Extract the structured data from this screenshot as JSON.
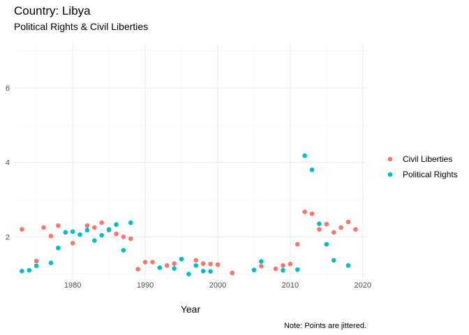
{
  "chart_data": {
    "type": "scatter",
    "title": "Country: Libya",
    "subtitle": "Political Rights & Civil Liberties",
    "xlabel": "Year",
    "ylabel": "",
    "caption": "Note: Points are jittered.",
    "xlim": [
      1971.9,
      2020.6
    ],
    "ylim": [
      0.9,
      7.2
    ],
    "x_ticks": [
      1980,
      1990,
      2000,
      2010,
      2020
    ],
    "y_ticks": [
      2,
      4,
      6
    ],
    "grid": true,
    "legend_position": "right",
    "series": [
      {
        "name": "Civil Liberties",
        "color": "#F8766D",
        "points": [
          [
            1973,
            2.2
          ],
          [
            1975,
            1.35
          ],
          [
            1976,
            2.25
          ],
          [
            1977,
            2.02
          ],
          [
            1978,
            2.3
          ],
          [
            1979,
            2.12
          ],
          [
            1980,
            1.83
          ],
          [
            1982,
            2.3
          ],
          [
            1983,
            2.25
          ],
          [
            1984,
            2.38
          ],
          [
            1985,
            2.18
          ],
          [
            1986,
            2.08
          ],
          [
            1987,
            2.0
          ],
          [
            1988,
            1.95
          ],
          [
            1989,
            1.13
          ],
          [
            1990,
            1.32
          ],
          [
            1991,
            1.32
          ],
          [
            1993,
            1.23
          ],
          [
            1994,
            1.28
          ],
          [
            1997,
            1.37
          ],
          [
            1998,
            1.28
          ],
          [
            1999,
            1.27
          ],
          [
            2000,
            1.25
          ],
          [
            2002,
            1.03
          ],
          [
            2006,
            1.21
          ],
          [
            2008,
            1.14
          ],
          [
            2009,
            1.23
          ],
          [
            2010,
            1.27
          ],
          [
            2011,
            1.8
          ],
          [
            2012,
            2.67
          ],
          [
            2013,
            2.62
          ],
          [
            2014,
            2.2
          ],
          [
            2015,
            2.34
          ],
          [
            2016,
            2.12
          ],
          [
            2017,
            2.25
          ],
          [
            2018,
            2.4
          ],
          [
            2019,
            2.2
          ]
        ]
      },
      {
        "name": "Political Rights",
        "color": "#00BFC4",
        "points": [
          [
            1973,
            1.08
          ],
          [
            1974,
            1.1
          ],
          [
            1975,
            1.22
          ],
          [
            1977,
            1.3
          ],
          [
            1978,
            1.7
          ],
          [
            1979,
            2.12
          ],
          [
            1980,
            2.14
          ],
          [
            1981,
            2.06
          ],
          [
            1982,
            2.18
          ],
          [
            1983,
            1.9
          ],
          [
            1984,
            2.04
          ],
          [
            1985,
            2.2
          ],
          [
            1986,
            2.33
          ],
          [
            1987,
            1.64
          ],
          [
            1988,
            2.38
          ],
          [
            1992,
            1.17
          ],
          [
            1994,
            1.15
          ],
          [
            1995,
            1.4
          ],
          [
            1996,
            1.0
          ],
          [
            1997,
            1.23
          ],
          [
            1998,
            1.08
          ],
          [
            1999,
            1.07
          ],
          [
            2005,
            1.11
          ],
          [
            2006,
            1.34
          ],
          [
            2009,
            1.1
          ],
          [
            2011,
            1.12
          ],
          [
            2012,
            4.18
          ],
          [
            2013,
            3.8
          ],
          [
            2014,
            2.35
          ],
          [
            2015,
            1.8
          ],
          [
            2016,
            1.37
          ],
          [
            2018,
            1.23
          ]
        ]
      }
    ]
  }
}
